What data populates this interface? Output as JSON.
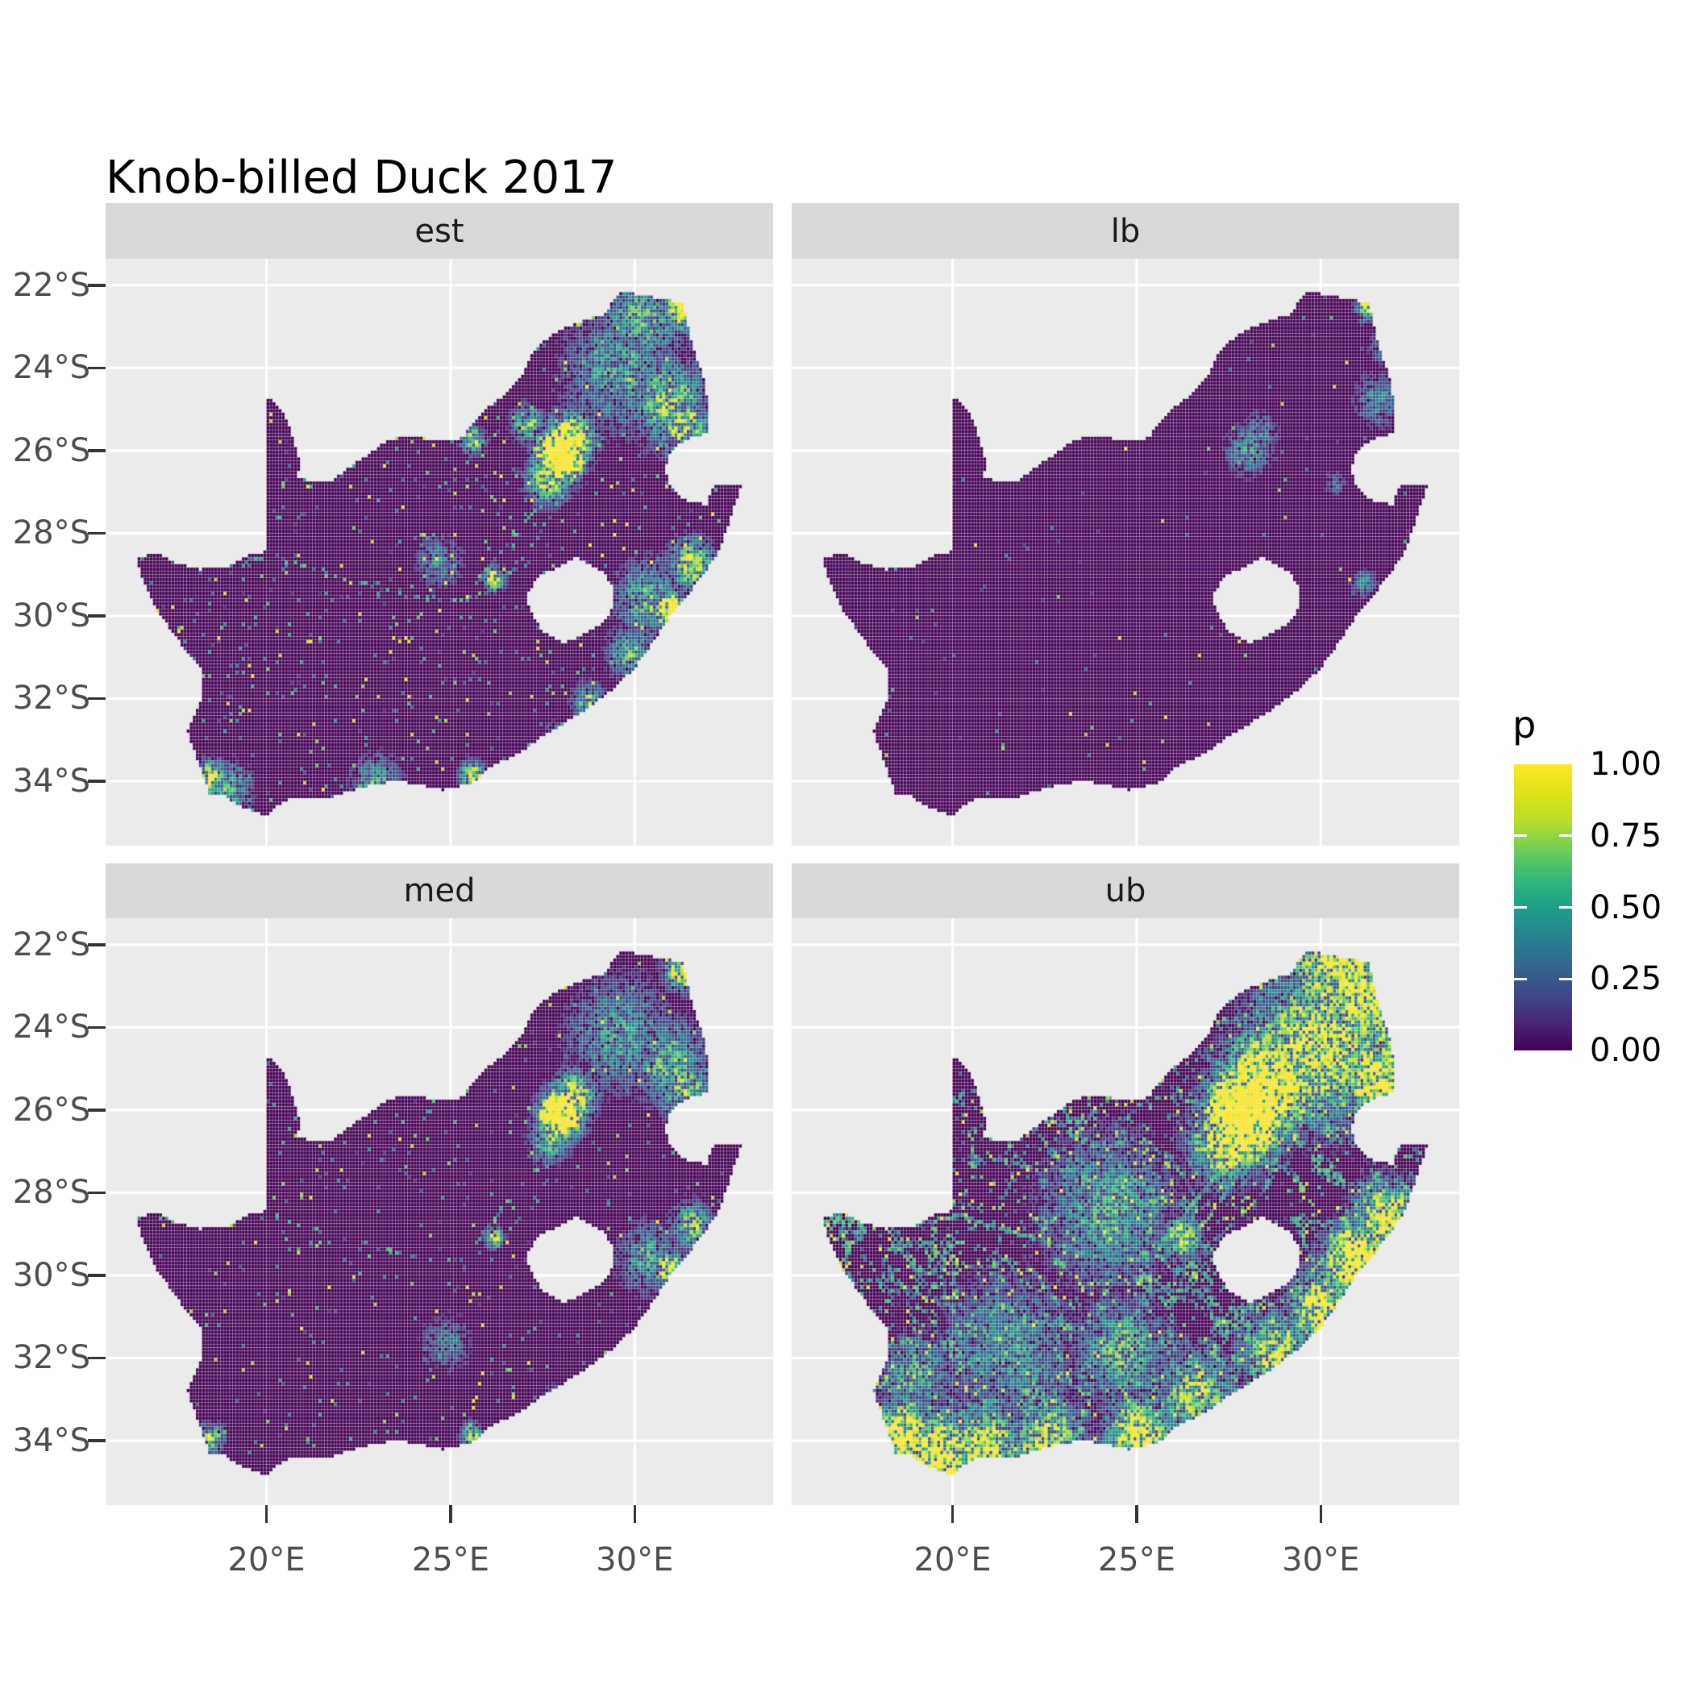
{
  "chart_data": {
    "type": "heatmap",
    "title": "Knob-billed Duck 2017",
    "facets": [
      "est",
      "lb",
      "med",
      "ub"
    ],
    "legend": {
      "title": "p",
      "tick_labels": [
        "1.00",
        "0.75",
        "0.50",
        "0.25",
        "0.00"
      ],
      "tick_values": [
        1.0,
        0.75,
        0.5,
        0.25,
        0.0
      ]
    },
    "x_axis": {
      "tick_labels": [
        "20°E",
        "25°E",
        "30°E"
      ],
      "tick_lons": [
        20,
        25,
        30
      ],
      "domain": [
        15.63,
        33.76
      ]
    },
    "y_axis": {
      "tick_labels": [
        "22°S",
        "24°S",
        "26°S",
        "28°S",
        "30°S",
        "32°S",
        "34°S"
      ],
      "tick_lats": [
        22,
        24,
        26,
        28,
        30,
        32,
        34
      ],
      "domain": [
        21.36,
        35.56
      ]
    },
    "cell_size_deg": 0.083333,
    "colors": {
      "panel_background": "#EBEBEB",
      "strip_background": "#D9D9D9",
      "grid_line": "#FFFFFF",
      "axis_text": "#4D4D4D",
      "tick_mark": "#333333",
      "raster_zero": "#440154",
      "viridis_stops": [
        [
          0.0,
          "#440154"
        ],
        [
          0.1,
          "#482878"
        ],
        [
          0.2,
          "#3E4A89"
        ],
        [
          0.3,
          "#31688E"
        ],
        [
          0.4,
          "#26828E"
        ],
        [
          0.5,
          "#1F9E89"
        ],
        [
          0.6,
          "#35B779"
        ],
        [
          0.7,
          "#6DCD59"
        ],
        [
          0.8,
          "#B4DE2C"
        ],
        [
          0.9,
          "#DDE318"
        ],
        [
          1.0,
          "#FDE725"
        ]
      ]
    },
    "region_outline": [
      [
        16.45,
        28.6
      ],
      [
        17.1,
        28.48
      ],
      [
        17.45,
        28.7
      ],
      [
        18.2,
        28.88
      ],
      [
        19.0,
        28.8
      ],
      [
        19.55,
        28.52
      ],
      [
        19.99,
        28.45
      ],
      [
        19.99,
        24.72
      ],
      [
        20.18,
        24.78
      ],
      [
        20.45,
        25.1
      ],
      [
        20.67,
        25.52
      ],
      [
        20.82,
        25.98
      ],
      [
        20.94,
        26.38
      ],
      [
        20.83,
        26.62
      ],
      [
        21.12,
        26.72
      ],
      [
        21.72,
        26.78
      ],
      [
        22.32,
        26.36
      ],
      [
        22.78,
        26.1
      ],
      [
        23.28,
        25.75
      ],
      [
        23.92,
        25.62
      ],
      [
        24.56,
        25.76
      ],
      [
        25.32,
        25.7
      ],
      [
        25.88,
        25.05
      ],
      [
        26.42,
        24.7
      ],
      [
        26.92,
        24.2
      ],
      [
        27.32,
        23.5
      ],
      [
        27.96,
        23.1
      ],
      [
        28.62,
        22.86
      ],
      [
        29.18,
        22.7
      ],
      [
        29.62,
        22.14
      ],
      [
        30.52,
        22.3
      ],
      [
        31.32,
        22.42
      ],
      [
        31.56,
        23.4
      ],
      [
        31.9,
        24.3
      ],
      [
        32.03,
        25.1
      ],
      [
        32.03,
        25.58
      ],
      [
        31.42,
        25.72
      ],
      [
        30.98,
        26.02
      ],
      [
        30.82,
        26.46
      ],
      [
        30.97,
        26.9
      ],
      [
        31.36,
        27.2
      ],
      [
        31.96,
        27.32
      ],
      [
        32.14,
        26.86
      ],
      [
        32.89,
        26.86
      ],
      [
        32.58,
        27.7
      ],
      [
        32.28,
        28.45
      ],
      [
        31.78,
        29.12
      ],
      [
        31.06,
        29.9
      ],
      [
        30.56,
        30.56
      ],
      [
        30.02,
        31.26
      ],
      [
        29.22,
        31.92
      ],
      [
        28.42,
        32.42
      ],
      [
        27.62,
        32.86
      ],
      [
        26.86,
        33.32
      ],
      [
        25.98,
        33.72
      ],
      [
        25.64,
        34.02
      ],
      [
        24.82,
        34.22
      ],
      [
        23.56,
        33.99
      ],
      [
        22.56,
        34.16
      ],
      [
        21.66,
        34.42
      ],
      [
        20.52,
        34.46
      ],
      [
        20.0,
        34.83
      ],
      [
        19.3,
        34.62
      ],
      [
        18.86,
        34.36
      ],
      [
        18.46,
        34.32
      ],
      [
        18.3,
        33.92
      ],
      [
        17.86,
        32.8
      ],
      [
        18.26,
        32.02
      ],
      [
        18.22,
        31.3
      ],
      [
        17.66,
        30.66
      ],
      [
        17.06,
        29.92
      ],
      [
        16.72,
        29.32
      ]
    ],
    "region_hole": [
      [
        27.02,
        29.58
      ],
      [
        27.38,
        29.08
      ],
      [
        27.78,
        28.88
      ],
      [
        28.42,
        28.6
      ],
      [
        29.12,
        28.92
      ],
      [
        29.46,
        29.36
      ],
      [
        29.36,
        29.92
      ],
      [
        28.92,
        30.32
      ],
      [
        28.12,
        30.66
      ],
      [
        27.56,
        30.42
      ],
      [
        27.26,
        30.06
      ]
    ],
    "rivers": [
      [
        [
          17.1,
          28.62
        ],
        [
          18.0,
          28.75
        ],
        [
          19.0,
          28.78
        ],
        [
          20.2,
          28.55
        ],
        [
          21.2,
          28.85
        ],
        [
          22.2,
          29.1
        ],
        [
          23.3,
          29.4
        ],
        [
          24.4,
          29.62
        ],
        [
          25.4,
          29.62
        ],
        [
          26.2,
          29.35
        ],
        [
          26.9,
          28.65
        ],
        [
          27.55,
          27.85
        ],
        [
          28.1,
          27.0
        ]
      ],
      [
        [
          25.7,
          29.2
        ],
        [
          26.6,
          28.2
        ],
        [
          27.2,
          27.55
        ],
        [
          27.9,
          26.95
        ]
      ]
    ],
    "facet_params": {
      "est": {
        "seed": 11,
        "speckle": 0.055,
        "spow": 2.2,
        "river": 0.38,
        "net": 0,
        "netw": 0.3,
        "hotspots": [
          [
            28.0,
            26.1,
            0.5,
            3.0
          ],
          [
            28.25,
            25.72,
            0.55,
            1.3
          ],
          [
            27.65,
            26.65,
            0.55,
            0.8
          ],
          [
            29.6,
            24.1,
            1.3,
            0.45
          ],
          [
            30.95,
            24.8,
            0.95,
            0.65
          ],
          [
            31.35,
            25.45,
            0.7,
            0.75
          ],
          [
            30.2,
            22.8,
            1.1,
            0.5
          ],
          [
            31.35,
            22.55,
            0.5,
            1.1
          ],
          [
            30.95,
            29.85,
            0.38,
            1.4
          ],
          [
            30.4,
            29.6,
            0.8,
            0.55
          ],
          [
            31.55,
            28.75,
            0.55,
            0.75
          ],
          [
            26.2,
            29.1,
            0.25,
            0.95
          ],
          [
            25.6,
            25.75,
            0.3,
            0.75
          ],
          [
            27.1,
            25.35,
            0.38,
            0.65
          ],
          [
            18.5,
            33.92,
            0.38,
            0.95
          ],
          [
            19.0,
            34.15,
            0.55,
            0.5
          ],
          [
            23.0,
            34.02,
            0.6,
            0.45
          ],
          [
            25.6,
            33.85,
            0.3,
            0.85
          ],
          [
            27.9,
            33.0,
            0.3,
            0.75
          ],
          [
            28.8,
            32.1,
            0.4,
            0.65
          ],
          [
            24.7,
            28.7,
            0.55,
            0.35
          ],
          [
            29.9,
            30.9,
            0.55,
            0.55
          ]
        ]
      },
      "lb": {
        "seed": 22,
        "speckle": 0.01,
        "spow": 2.8,
        "river": 0,
        "net": 0,
        "netw": 0.3,
        "hotspots": [
          [
            28.05,
            26.0,
            0.55,
            0.4
          ],
          [
            28.35,
            25.55,
            0.45,
            0.32
          ],
          [
            31.3,
            22.5,
            0.3,
            1.0
          ],
          [
            31.55,
            24.8,
            0.55,
            0.38
          ],
          [
            31.9,
            23.5,
            0.45,
            0.4
          ],
          [
            31.2,
            29.2,
            0.3,
            0.35
          ],
          [
            30.4,
            26.8,
            0.25,
            0.3
          ]
        ]
      },
      "med": {
        "seed": 33,
        "speckle": 0.038,
        "spow": 2.3,
        "river": 0.28,
        "net": 0,
        "netw": 0.3,
        "hotspots": [
          [
            28.0,
            26.1,
            0.48,
            2.4
          ],
          [
            28.3,
            25.7,
            0.52,
            1.05
          ],
          [
            27.7,
            26.7,
            0.5,
            0.6
          ],
          [
            29.6,
            24.2,
            1.25,
            0.42
          ],
          [
            30.95,
            24.85,
            0.9,
            0.55
          ],
          [
            31.35,
            25.5,
            0.65,
            0.65
          ],
          [
            31.35,
            22.6,
            0.45,
            1.0
          ],
          [
            30.95,
            29.85,
            0.36,
            1.15
          ],
          [
            30.4,
            29.6,
            0.75,
            0.45
          ],
          [
            31.55,
            28.8,
            0.5,
            0.65
          ],
          [
            26.2,
            29.1,
            0.22,
            0.8
          ],
          [
            18.5,
            33.95,
            0.32,
            0.75
          ],
          [
            25.6,
            33.85,
            0.27,
            0.7
          ],
          [
            27.9,
            33.0,
            0.27,
            0.6
          ],
          [
            24.9,
            31.6,
            0.6,
            0.3
          ]
        ]
      },
      "ub": {
        "seed": 44,
        "speckle": 0.13,
        "spow": 1.5,
        "river": 0.8,
        "net": 0.55,
        "netw": 0.33,
        "hotspots": [
          [
            28.0,
            26.05,
            0.85,
            3.0
          ],
          [
            28.6,
            25.3,
            1.05,
            1.5
          ],
          [
            27.45,
            26.75,
            0.85,
            1.1
          ],
          [
            29.9,
            24.5,
            1.6,
            0.95
          ],
          [
            31.2,
            23.3,
            1.05,
            1.05
          ],
          [
            30.5,
            22.6,
            1.2,
            1.0
          ],
          [
            31.6,
            25.2,
            0.85,
            1.2
          ],
          [
            32.0,
            24.0,
            0.6,
            1.1
          ],
          [
            30.95,
            29.6,
            0.75,
            1.4
          ],
          [
            30.05,
            30.8,
            0.85,
            0.95
          ],
          [
            31.8,
            28.6,
            0.75,
            1.15
          ],
          [
            28.8,
            31.9,
            0.85,
            0.85
          ],
          [
            18.6,
            33.9,
            0.65,
            1.5
          ],
          [
            19.6,
            34.3,
            0.85,
            1.2
          ],
          [
            20.9,
            34.25,
            0.95,
            0.95
          ],
          [
            22.6,
            33.95,
            0.85,
            0.85
          ],
          [
            25.1,
            33.9,
            0.85,
            1.0
          ],
          [
            26.6,
            32.9,
            0.95,
            0.75
          ],
          [
            26.2,
            29.1,
            0.45,
            0.85
          ],
          [
            24.2,
            28.4,
            1.6,
            0.45
          ],
          [
            21.5,
            31.8,
            1.6,
            0.4
          ],
          [
            19.0,
            32.5,
            0.9,
            0.5
          ],
          [
            24.6,
            31.8,
            1.1,
            0.55
          ]
        ]
      }
    }
  }
}
